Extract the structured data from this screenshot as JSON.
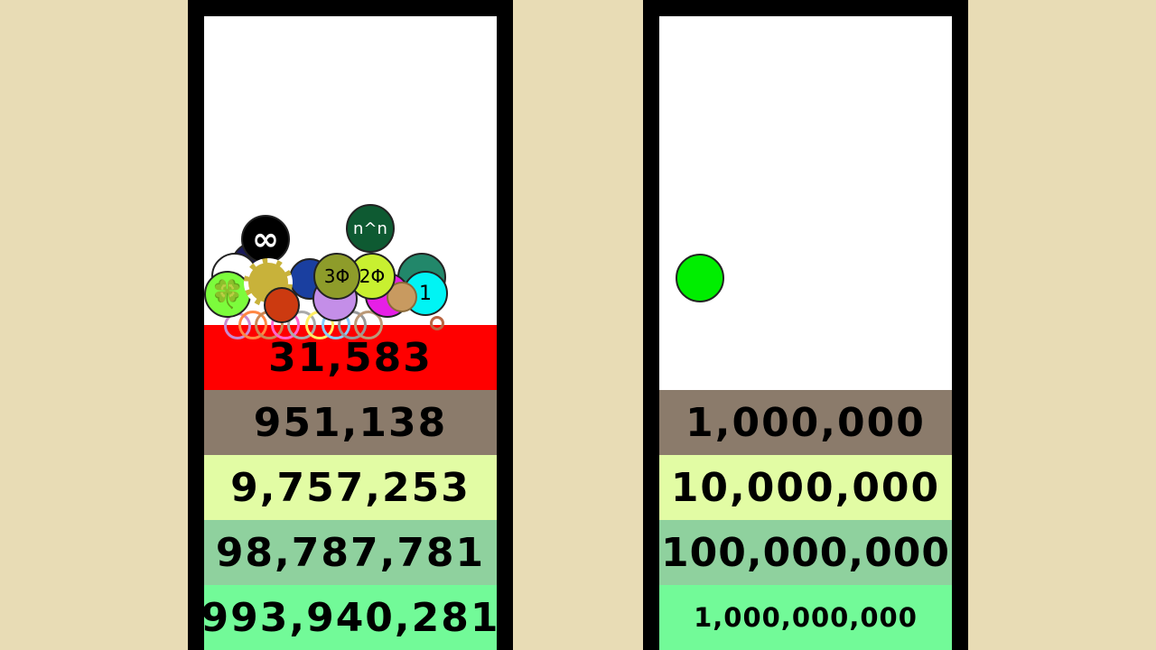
{
  "left_counter": {
    "bands": [
      {
        "value": "31,583",
        "color": "#ff0000"
      },
      {
        "value": "951,138",
        "color": "#8b7b6b"
      },
      {
        "value": "9,757,253",
        "color": "#e2fca4"
      },
      {
        "value": "98,787,781",
        "color": "#8fd19e"
      },
      {
        "value": "993,940,281",
        "color": "#72fa98"
      }
    ],
    "ball_labels": {
      "infinity": "∞",
      "n_pow_n": "n^n",
      "three_phi": "3Φ",
      "two_phi": "2Φ",
      "one": "1",
      "clover": "🍀"
    }
  },
  "right_counter": {
    "bands": [
      {
        "value": "1,000,000",
        "color": "#8b7b6b"
      },
      {
        "value": "10,000,000",
        "color": "#e2fca4"
      },
      {
        "value": "100,000,000",
        "color": "#8fd19e"
      },
      {
        "value": "1,000,000,000",
        "color": "#72fa98"
      }
    ],
    "ball_color": "#00ee00"
  }
}
